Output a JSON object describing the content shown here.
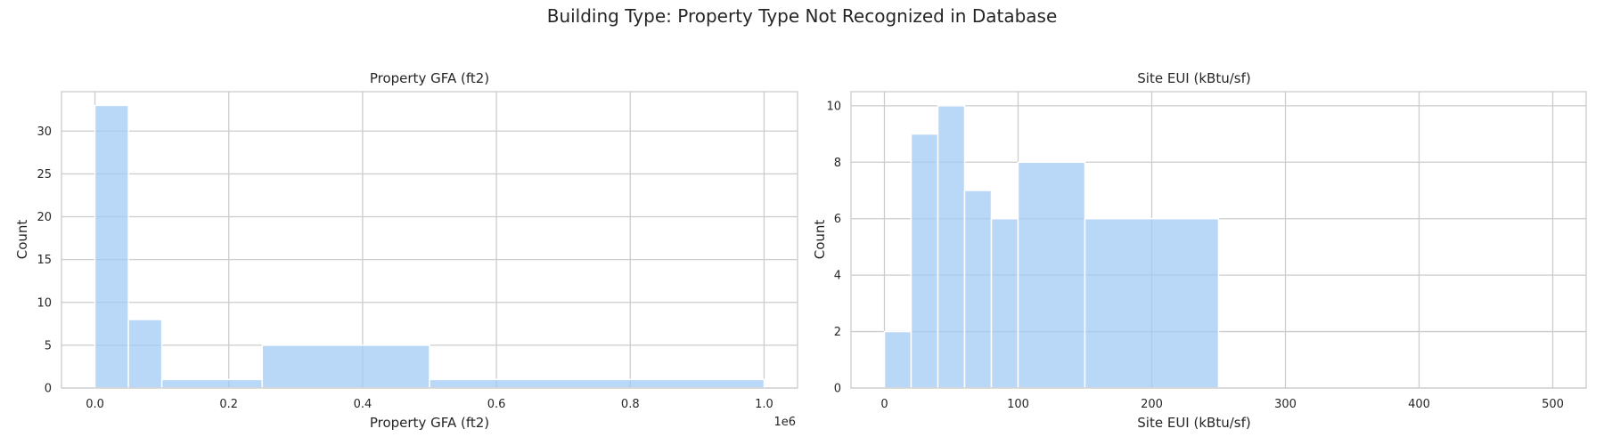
{
  "figure": {
    "suptitle": "Building Type: Property Type Not Recognized in Database"
  },
  "chart_data": [
    {
      "type": "bar",
      "variant": "histogram",
      "title": "Property GFA (ft2)",
      "xlabel": "Property GFA (ft2)",
      "ylabel": "Count",
      "x_offset_label": "1e6",
      "bins": [
        [
          0,
          50000,
          33
        ],
        [
          50000,
          100000,
          8
        ],
        [
          100000,
          250000,
          1
        ],
        [
          250000,
          500000,
          5
        ],
        [
          500000,
          1000000,
          1
        ]
      ],
      "xlim": [
        -50000,
        1050000
      ],
      "ylim": [
        0,
        34.6
      ],
      "xticks": [
        0,
        200000,
        400000,
        600000,
        800000,
        1000000
      ],
      "xtick_labels": [
        "0.0",
        "0.2",
        "0.4",
        "0.6",
        "0.8",
        "1.0"
      ],
      "yticks": [
        0,
        5,
        10,
        15,
        20,
        25,
        30
      ],
      "ytick_labels": [
        "0",
        "5",
        "10",
        "15",
        "20",
        "25",
        "30"
      ],
      "grid": true,
      "bar_color": "#a1c9f4"
    },
    {
      "type": "bar",
      "variant": "histogram",
      "title": "Site EUI (kBtu/sf)",
      "xlabel": "Site EUI (kBtu/sf)",
      "ylabel": "Count",
      "bins": [
        [
          0,
          20,
          2
        ],
        [
          20,
          40,
          9
        ],
        [
          40,
          60,
          10
        ],
        [
          60,
          80,
          7
        ],
        [
          80,
          100,
          6
        ],
        [
          100,
          150,
          8
        ],
        [
          150,
          250,
          6
        ],
        [
          250,
          500,
          0
        ]
      ],
      "xlim": [
        -25,
        525
      ],
      "ylim": [
        0,
        10.5
      ],
      "xticks": [
        0,
        100,
        200,
        300,
        400,
        500
      ],
      "xtick_labels": [
        "0",
        "100",
        "200",
        "300",
        "400",
        "500"
      ],
      "yticks": [
        0,
        2,
        4,
        6,
        8,
        10
      ],
      "ytick_labels": [
        "0",
        "2",
        "4",
        "6",
        "8",
        "10"
      ],
      "grid": true,
      "bar_color": "#a1c9f4"
    }
  ]
}
